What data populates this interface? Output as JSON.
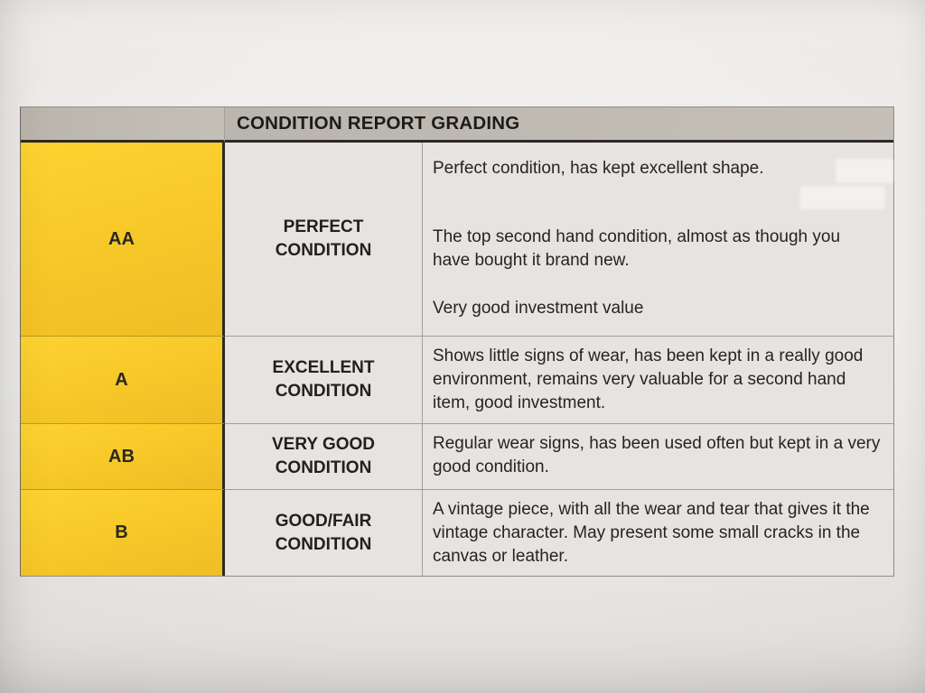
{
  "document": {
    "title": "CONDITION REPORT GRADING",
    "rows": [
      {
        "grade": "AA",
        "label": "PERFECT CONDITION",
        "description": [
          "Perfect condition, has kept excellent shape.",
          "The top second hand condition, almost as though you have bought it brand new.",
          "Very good investment value"
        ]
      },
      {
        "grade": "A",
        "label": "EXCELLENT CONDITION",
        "description": [
          "Shows little signs of wear, has been kept in a really good environment, remains very valuable for a second hand item, good investment."
        ]
      },
      {
        "grade": "AB",
        "label": "VERY GOOD CONDITION",
        "description": [
          "Regular wear signs, has been used often but kept in a very good condition."
        ]
      },
      {
        "grade": "B",
        "label": "GOOD/FAIR CONDITION",
        "description": [
          "A vintage piece, with all the wear and tear that gives it the vintage character. May present some small cracks in the canvas or leather."
        ]
      }
    ],
    "colors": {
      "grade_column_yellow": "#F7C929",
      "header_gray": "#BEB9B1",
      "paper": "#E8E6E3",
      "cell_background": "#E6E4E1",
      "text": "#26241F"
    }
  }
}
